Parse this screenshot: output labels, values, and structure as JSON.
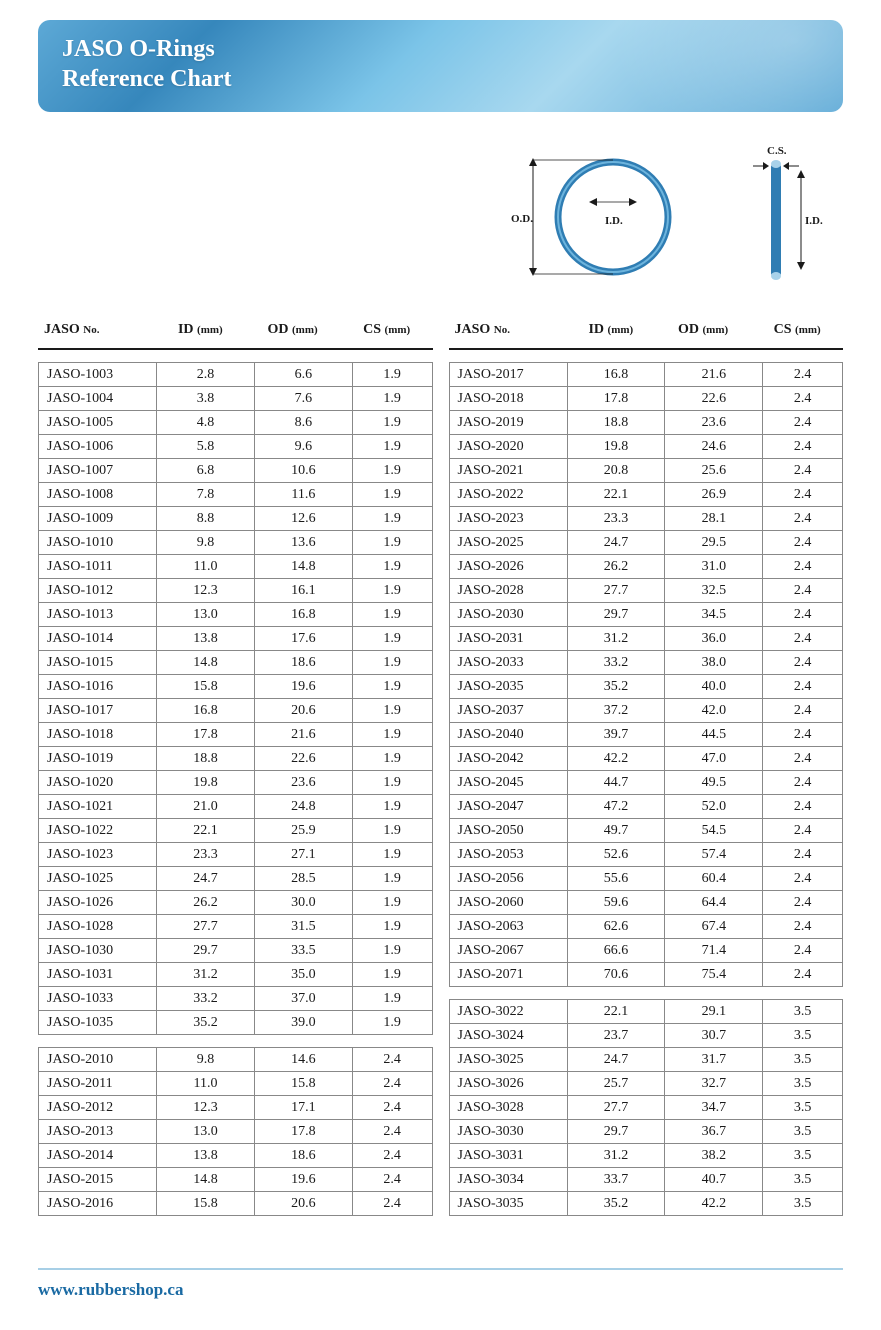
{
  "header": {
    "title_line1": "JASO O-Rings",
    "title_line2": "Reference Chart"
  },
  "diagram": {
    "od_label": "O.D.",
    "id_label": "I.D.",
    "cs_label": "C.S.",
    "ring_stroke": "#2f7db3",
    "ring_fill_light": "#a8d2ea",
    "arrow_color": "#1a1a1a"
  },
  "columns": [
    {
      "key": "no",
      "label": "JASO",
      "unit": "No."
    },
    {
      "key": "id",
      "label": "ID",
      "unit": "(mm)"
    },
    {
      "key": "od",
      "label": "OD",
      "unit": "(mm)"
    },
    {
      "key": "cs",
      "label": "CS",
      "unit": "(mm)"
    }
  ],
  "left_blocks": [
    {
      "rows": [
        [
          "JASO-1003",
          "2.8",
          "6.6",
          "1.9"
        ],
        [
          "JASO-1004",
          "3.8",
          "7.6",
          "1.9"
        ],
        [
          "JASO-1005",
          "4.8",
          "8.6",
          "1.9"
        ],
        [
          "JASO-1006",
          "5.8",
          "9.6",
          "1.9"
        ],
        [
          "JASO-1007",
          "6.8",
          "10.6",
          "1.9"
        ],
        [
          "JASO-1008",
          "7.8",
          "11.6",
          "1.9"
        ],
        [
          "JASO-1009",
          "8.8",
          "12.6",
          "1.9"
        ],
        [
          "JASO-1010",
          "9.8",
          "13.6",
          "1.9"
        ],
        [
          "JASO-1011",
          "11.0",
          "14.8",
          "1.9"
        ],
        [
          "JASO-1012",
          "12.3",
          "16.1",
          "1.9"
        ],
        [
          "JASO-1013",
          "13.0",
          "16.8",
          "1.9"
        ],
        [
          "JASO-1014",
          "13.8",
          "17.6",
          "1.9"
        ],
        [
          "JASO-1015",
          "14.8",
          "18.6",
          "1.9"
        ],
        [
          "JASO-1016",
          "15.8",
          "19.6",
          "1.9"
        ],
        [
          "JASO-1017",
          "16.8",
          "20.6",
          "1.9"
        ],
        [
          "JASO-1018",
          "17.8",
          "21.6",
          "1.9"
        ],
        [
          "JASO-1019",
          "18.8",
          "22.6",
          "1.9"
        ],
        [
          "JASO-1020",
          "19.8",
          "23.6",
          "1.9"
        ],
        [
          "JASO-1021",
          "21.0",
          "24.8",
          "1.9"
        ],
        [
          "JASO-1022",
          "22.1",
          "25.9",
          "1.9"
        ],
        [
          "JASO-1023",
          "23.3",
          "27.1",
          "1.9"
        ],
        [
          "JASO-1025",
          "24.7",
          "28.5",
          "1.9"
        ],
        [
          "JASO-1026",
          "26.2",
          "30.0",
          "1.9"
        ],
        [
          "JASO-1028",
          "27.7",
          "31.5",
          "1.9"
        ],
        [
          "JASO-1030",
          "29.7",
          "33.5",
          "1.9"
        ],
        [
          "JASO-1031",
          "31.2",
          "35.0",
          "1.9"
        ],
        [
          "JASO-1033",
          "33.2",
          "37.0",
          "1.9"
        ],
        [
          "JASO-1035",
          "35.2",
          "39.0",
          "1.9"
        ]
      ]
    },
    {
      "rows": [
        [
          "JASO-2010",
          "9.8",
          "14.6",
          "2.4"
        ],
        [
          "JASO-2011",
          "11.0",
          "15.8",
          "2.4"
        ],
        [
          "JASO-2012",
          "12.3",
          "17.1",
          "2.4"
        ],
        [
          "JASO-2013",
          "13.0",
          "17.8",
          "2.4"
        ],
        [
          "JASO-2014",
          "13.8",
          "18.6",
          "2.4"
        ],
        [
          "JASO-2015",
          "14.8",
          "19.6",
          "2.4"
        ],
        [
          "JASO-2016",
          "15.8",
          "20.6",
          "2.4"
        ]
      ]
    }
  ],
  "right_blocks": [
    {
      "rows": [
        [
          "JASO-2017",
          "16.8",
          "21.6",
          "2.4"
        ],
        [
          "JASO-2018",
          "17.8",
          "22.6",
          "2.4"
        ],
        [
          "JASO-2019",
          "18.8",
          "23.6",
          "2.4"
        ],
        [
          "JASO-2020",
          "19.8",
          "24.6",
          "2.4"
        ],
        [
          "JASO-2021",
          "20.8",
          "25.6",
          "2.4"
        ],
        [
          "JASO-2022",
          "22.1",
          "26.9",
          "2.4"
        ],
        [
          "JASO-2023",
          "23.3",
          "28.1",
          "2.4"
        ],
        [
          "JASO-2025",
          "24.7",
          "29.5",
          "2.4"
        ],
        [
          "JASO-2026",
          "26.2",
          "31.0",
          "2.4"
        ],
        [
          "JASO-2028",
          "27.7",
          "32.5",
          "2.4"
        ],
        [
          "JASO-2030",
          "29.7",
          "34.5",
          "2.4"
        ],
        [
          "JASO-2031",
          "31.2",
          "36.0",
          "2.4"
        ],
        [
          "JASO-2033",
          "33.2",
          "38.0",
          "2.4"
        ],
        [
          "JASO-2035",
          "35.2",
          "40.0",
          "2.4"
        ],
        [
          "JASO-2037",
          "37.2",
          "42.0",
          "2.4"
        ],
        [
          "JASO-2040",
          "39.7",
          "44.5",
          "2.4"
        ],
        [
          "JASO-2042",
          "42.2",
          "47.0",
          "2.4"
        ],
        [
          "JASO-2045",
          "44.7",
          "49.5",
          "2.4"
        ],
        [
          "JASO-2047",
          "47.2",
          "52.0",
          "2.4"
        ],
        [
          "JASO-2050",
          "49.7",
          "54.5",
          "2.4"
        ],
        [
          "JASO-2053",
          "52.6",
          "57.4",
          "2.4"
        ],
        [
          "JASO-2056",
          "55.6",
          "60.4",
          "2.4"
        ],
        [
          "JASO-2060",
          "59.6",
          "64.4",
          "2.4"
        ],
        [
          "JASO-2063",
          "62.6",
          "67.4",
          "2.4"
        ],
        [
          "JASO-2067",
          "66.6",
          "71.4",
          "2.4"
        ],
        [
          "JASO-2071",
          "70.6",
          "75.4",
          "2.4"
        ]
      ]
    },
    {
      "rows": [
        [
          "JASO-3022",
          "22.1",
          "29.1",
          "3.5"
        ],
        [
          "JASO-3024",
          "23.7",
          "30.7",
          "3.5"
        ],
        [
          "JASO-3025",
          "24.7",
          "31.7",
          "3.5"
        ],
        [
          "JASO-3026",
          "25.7",
          "32.7",
          "3.5"
        ],
        [
          "JASO-3028",
          "27.7",
          "34.7",
          "3.5"
        ],
        [
          "JASO-3030",
          "29.7",
          "36.7",
          "3.5"
        ],
        [
          "JASO-3031",
          "31.2",
          "38.2",
          "3.5"
        ],
        [
          "JASO-3034",
          "33.7",
          "40.7",
          "3.5"
        ],
        [
          "JASO-3035",
          "35.2",
          "42.2",
          "3.5"
        ]
      ]
    }
  ],
  "footer": {
    "url": "www.rubbershop.ca"
  },
  "colors": {
    "header_text": "#ffffff",
    "link": "#1a6aa3",
    "rule": "#888888",
    "header_rule": "#1a1a1a"
  }
}
